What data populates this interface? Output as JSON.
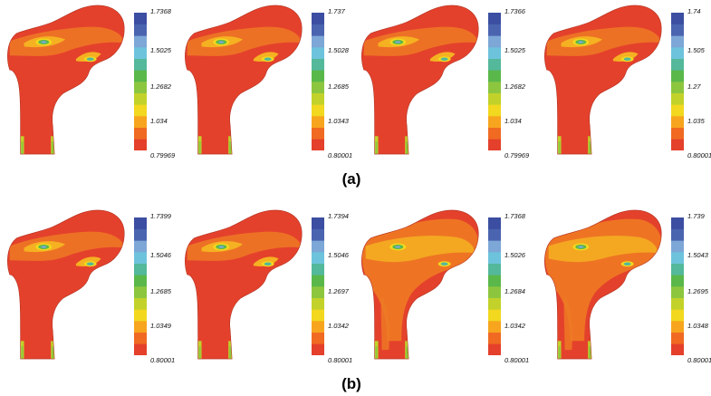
{
  "captions": {
    "a": "(a)",
    "b": "(b)"
  },
  "colors": {
    "bands": [
      "#e4402b",
      "#f06a22",
      "#f7a51e",
      "#f2d81f",
      "#c2d22a",
      "#8cc63f",
      "#5ab84a",
      "#54b89b",
      "#6ec3dc",
      "#7da7d6",
      "#4b64b0",
      "#3b4ea1"
    ],
    "bone_base": "#e4412c",
    "band_mid": "#ee7a24",
    "band_light": "#f5b121"
  },
  "rows": [
    {
      "label": "(a)",
      "panels": [
        {
          "ticks": [
            "1.7368",
            "1.5025",
            "1.2682",
            "1.034",
            "0.79969"
          ],
          "variant": "compact"
        },
        {
          "ticks": [
            "1.737",
            "1.5028",
            "1.2685",
            "1.0343",
            "0.80001"
          ],
          "variant": "compact"
        },
        {
          "ticks": [
            "1.7366",
            "1.5025",
            "1.2682",
            "1.034",
            "0.79969"
          ],
          "variant": "compact"
        },
        {
          "ticks": [
            "1.74",
            "1.505",
            "1.27",
            "1.035",
            "0.80001"
          ],
          "variant": "compact"
        }
      ]
    },
    {
      "label": "(b)",
      "panels": [
        {
          "ticks": [
            "1.7399",
            "1.5046",
            "1.2685",
            "1.0349",
            "0.80001"
          ],
          "variant": "compact"
        },
        {
          "ticks": [
            "1.7394",
            "1.5046",
            "1.2697",
            "1.0342",
            "0.80001"
          ],
          "variant": "compact"
        },
        {
          "ticks": [
            "1.7368",
            "1.5026",
            "1.2684",
            "1.0342",
            "0.80001"
          ],
          "variant": "diffuse"
        },
        {
          "ticks": [
            "1.739",
            "1.5043",
            "1.2695",
            "1.0348",
            "0.80001"
          ],
          "variant": "diffuse"
        }
      ]
    }
  ]
}
